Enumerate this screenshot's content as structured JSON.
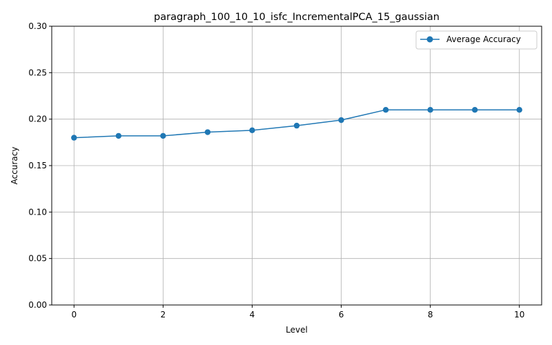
{
  "chart_data": {
    "type": "line",
    "title": "paragraph_100_10_10_isfc_IncrementalPCA_15_gaussian",
    "xlabel": "Level",
    "ylabel": "Accuracy",
    "xlim": [
      -0.5,
      10.5
    ],
    "ylim": [
      0,
      0.3
    ],
    "xticks": [
      0,
      2,
      4,
      6,
      8,
      10
    ],
    "yticks": [
      0.0,
      0.05,
      0.1,
      0.15,
      0.2,
      0.25,
      0.3
    ],
    "xtick_labels": [
      "0",
      "2",
      "4",
      "6",
      "8",
      "10"
    ],
    "ytick_labels": [
      "0.00",
      "0.05",
      "0.10",
      "0.15",
      "0.20",
      "0.25",
      "0.30"
    ],
    "grid": true,
    "legend_position": "top-right",
    "series": [
      {
        "name": "Average Accuracy",
        "color": "#1f77b4",
        "marker": "circle",
        "x": [
          0,
          1,
          2,
          3,
          4,
          5,
          6,
          7,
          8,
          9,
          10
        ],
        "y": [
          0.18,
          0.182,
          0.182,
          0.186,
          0.188,
          0.193,
          0.199,
          0.21,
          0.21,
          0.21,
          0.21
        ]
      }
    ]
  }
}
